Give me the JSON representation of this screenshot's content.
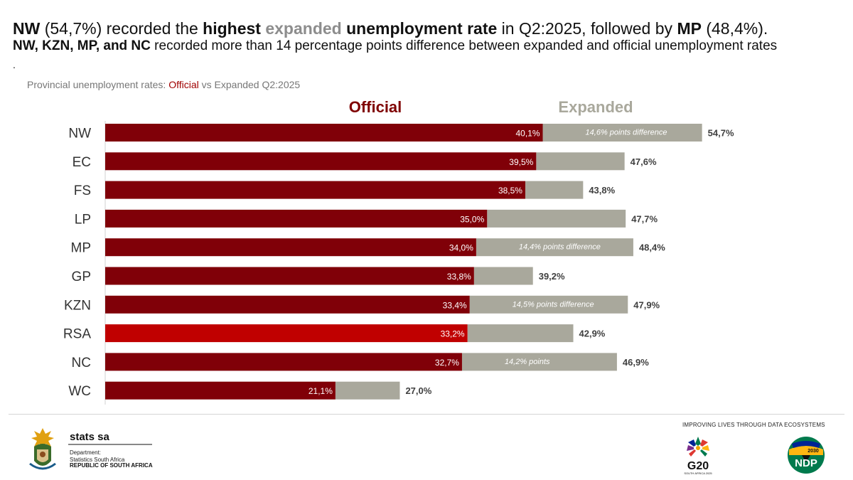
{
  "header": {
    "title_parts": {
      "p1": "NW",
      "p2": " (54,7%) recorded the ",
      "p3": "highest",
      "p4": "expanded",
      "p5": "unemployment rate",
      "p6": " in Q2:2025, followed by ",
      "p7": "MP",
      "p8": " (48,4%)."
    },
    "subtitle_parts": {
      "s1": "NW, KZN, MP, and NC",
      "s2": " recorded more than 14 percentage points difference between expanded and official unemployment rates"
    },
    "dot": "."
  },
  "caption": {
    "c1": "Provincial unemployment rates: ",
    "c2": "Official",
    "c3": " vs Expanded Q2:2025"
  },
  "chart_data": {
    "type": "bar",
    "orientation": "horizontal",
    "categories": [
      "NW",
      "EC",
      "FS",
      "LP",
      "MP",
      "GP",
      "KZN",
      "RSA",
      "NC",
      "WC"
    ],
    "series": [
      {
        "name": "Official",
        "values": [
          40.1,
          39.5,
          38.5,
          35.0,
          34.0,
          33.8,
          33.4,
          33.2,
          32.7,
          21.1
        ],
        "labels": [
          "40,1%",
          "39,5%",
          "38,5%",
          "35,0%",
          "34,0%",
          "33,8%",
          "33,4%",
          "33,2%",
          "32,7%",
          "21,1%"
        ]
      },
      {
        "name": "Expanded",
        "values": [
          54.7,
          47.6,
          43.8,
          47.7,
          48.4,
          39.2,
          47.9,
          42.9,
          46.9,
          27.0
        ],
        "labels": [
          "54,7%",
          "47,6%",
          "43,8%",
          "47,7%",
          "48,4%",
          "39,2%",
          "47,9%",
          "42,9%",
          "46,9%",
          "27,0%"
        ]
      }
    ],
    "annotations": [
      "14,6% points difference",
      "",
      "",
      "",
      "14,4% points difference",
      "",
      "14,5% points difference",
      "",
      "14,2% points",
      ""
    ],
    "highlight_category": "RSA",
    "xlim": [
      0,
      57
    ],
    "colors": {
      "official": "#800008",
      "official_rsa": "#c00000",
      "expanded": "#a9a89c",
      "official_header": "#7f0000",
      "expanded_header": "#a9a89c"
    }
  },
  "footer": {
    "org": "stats sa",
    "dept_line1": "Department:",
    "dept_line2": "Statistics South Africa",
    "country": "REPUBLIC OF SOUTH AFRICA",
    "slogan": "IMPROVING LIVES THROUGH DATA ECOSYSTEMS",
    "g20": "G20",
    "g20_sub": "SOUTH AFRICA 2025",
    "ndp": "NDP",
    "ndp_year": "2030",
    "icons": [
      "coat-of-arms-icon",
      "g20-logo-icon",
      "ndp-logo-icon"
    ]
  }
}
